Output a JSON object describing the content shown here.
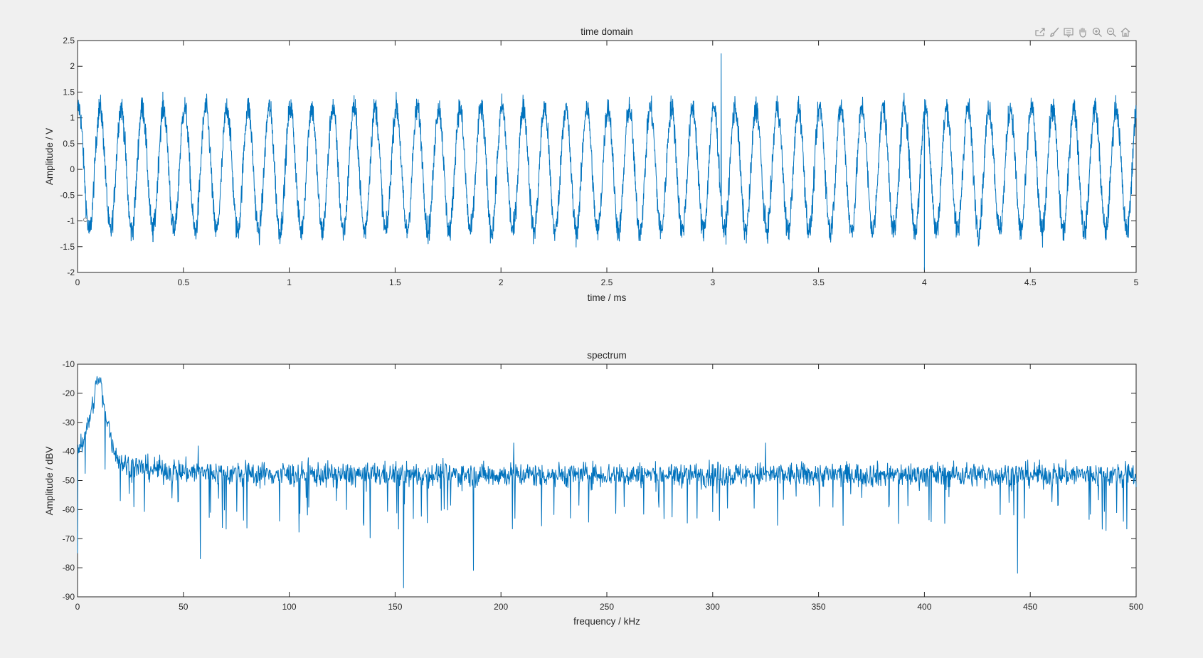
{
  "window": {
    "background": "#f0f0f0"
  },
  "toolbar": {
    "icons": [
      "export-icon",
      "brush-icon",
      "datatip-icon",
      "pan-hand-icon",
      "zoom-in-icon",
      "zoom-out-icon",
      "home-icon"
    ]
  },
  "colors": {
    "line": "#0072bd",
    "axes": "#262626",
    "plot_bg": "#ffffff"
  },
  "chart_data": [
    {
      "type": "line",
      "title": "time domain",
      "xlabel": "time / ms",
      "ylabel": "Amplitude / V",
      "xlim": [
        0,
        5
      ],
      "ylim": [
        -2,
        2.5
      ],
      "xticks": [
        "0",
        "0.5",
        "1",
        "1.5",
        "2",
        "2.5",
        "3",
        "3.5",
        "4",
        "4.5",
        "5"
      ],
      "yticks": [
        "-2",
        "-1.5",
        "-1",
        "-0.5",
        "0",
        "0.5",
        "1",
        "1.5",
        "2",
        "2.5"
      ],
      "grid": false,
      "signal": {
        "description": "sine of ~10 kHz (50 cycles in 5 ms), amplitude ~1.2 V, plus broadband noise ~0.25 V",
        "frequency_khz": 10,
        "amplitude_v": 1.2,
        "noise_v": 0.25,
        "x_step_ms": 0.001,
        "peak_max_v": 2.25,
        "peak_max_at_ms": 3.04,
        "min_v": -1.95,
        "min_at_ms": 4.0
      }
    },
    {
      "type": "line",
      "title": "spectrum",
      "xlabel": "frequency / kHz",
      "ylabel": "Amplitude / dBV",
      "xlim": [
        0,
        500
      ],
      "ylim": [
        -90,
        -10
      ],
      "xticks": [
        "0",
        "50",
        "100",
        "150",
        "200",
        "250",
        "300",
        "350",
        "400",
        "450",
        "500"
      ],
      "yticks": [
        "-90",
        "-80",
        "-70",
        "-60",
        "-50",
        "-40",
        "-30",
        "-20",
        "-10"
      ],
      "grid": false,
      "signal": {
        "description": "noise floor around -48 dBV with a peak near 10 kHz at ~-14 dBV",
        "noise_floor_dbv": -48,
        "x_step_khz": 0.2,
        "peak": {
          "x": 10,
          "y": -14
        },
        "dips": [
          {
            "x": 58,
            "y": -77
          },
          {
            "x": 154,
            "y": -87
          },
          {
            "x": 187,
            "y": -81
          },
          {
            "x": 444,
            "y": -82
          },
          {
            "x": 0,
            "y": -75
          }
        ],
        "spikes": [
          {
            "x": 206,
            "y": -37
          },
          {
            "x": 325,
            "y": -37
          },
          {
            "x": 57,
            "y": -38
          }
        ]
      }
    }
  ]
}
